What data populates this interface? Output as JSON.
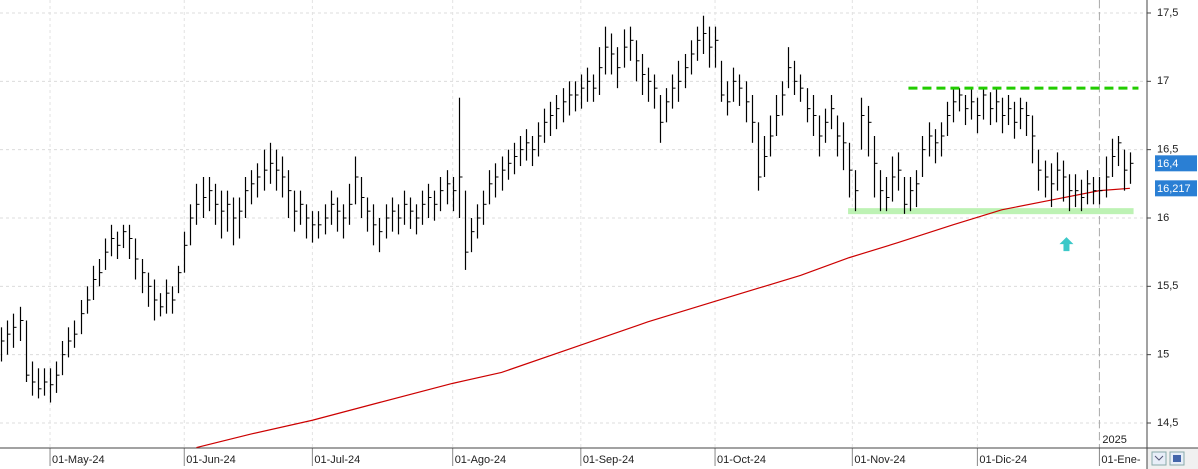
{
  "chart_data": {
    "type": "ohlc",
    "color": "#000000",
    "xlim": [
      -0.2,
      187.8
    ],
    "ylim": [
      14.317,
      17.595
    ],
    "grid": true,
    "yticks": [
      {
        "value": 17.5,
        "label": "17,5"
      },
      {
        "value": 17,
        "label": "17"
      },
      {
        "value": 16.5,
        "label": "16,5"
      },
      {
        "value": 16,
        "label": "16"
      },
      {
        "value": 15.5,
        "label": "15,5"
      },
      {
        "value": 15,
        "label": "15"
      },
      {
        "value": 14.5,
        "label": "14,5"
      }
    ],
    "xticks": [
      {
        "value": 8,
        "label": "01-May-24"
      },
      {
        "value": 30,
        "label": "01-Jun-24"
      },
      {
        "value": 51,
        "label": "01-Jul-24"
      },
      {
        "value": 74,
        "label": "01-Ago-24"
      },
      {
        "value": 95,
        "label": "01-Sep-24"
      },
      {
        "value": 117,
        "label": "01-Oct-24"
      },
      {
        "value": 139.5,
        "label": "01-Nov-24"
      },
      {
        "value": 160,
        "label": "01-Dic-24"
      },
      {
        "value": 180,
        "label": "01-Ene-"
      }
    ],
    "year_divider": {
      "value": 180,
      "label": "2025"
    },
    "high": [
      15.2,
      15.25,
      15.3,
      15.35,
      15.25,
      14.95,
      14.9,
      14.9,
      14.9,
      14.95,
      15.1,
      15.2,
      15.25,
      15.4,
      15.5,
      15.65,
      15.7,
      15.85,
      15.95,
      15.9,
      15.95,
      15.95,
      15.85,
      15.7,
      15.6,
      15.55,
      15.45,
      15.55,
      15.5,
      15.65,
      15.9,
      16.1,
      16.25,
      16.3,
      16.3,
      16.25,
      16.2,
      16.2,
      16.15,
      16.15,
      16.3,
      16.35,
      16.4,
      16.5,
      16.55,
      16.5,
      16.45,
      16.35,
      16.2,
      16.2,
      16.1,
      16.05,
      16.05,
      16.1,
      16.2,
      16.15,
      16.1,
      16.25,
      16.45,
      16.3,
      16.15,
      16.1,
      16.0,
      16.1,
      16.15,
      16.1,
      16.2,
      16.15,
      16.1,
      16.2,
      16.25,
      16.2,
      16.3,
      16.35,
      16.3,
      16.88,
      16.2,
      16.0,
      16.1,
      16.2,
      16.35,
      16.4,
      16.45,
      16.5,
      16.55,
      16.6,
      16.65,
      16.6,
      16.7,
      16.8,
      16.85,
      16.9,
      16.95,
      17.0,
      17.0,
      17.05,
      17.1,
      17.05,
      17.25,
      17.4,
      17.35,
      17.25,
      17.38,
      17.4,
      17.3,
      17.2,
      17.1,
      17.05,
      16.9,
      16.95,
      17.05,
      17.15,
      17.2,
      17.3,
      17.4,
      17.48,
      17.4,
      17.4,
      17.15,
      17.0,
      17.1,
      17.05,
      17.0,
      16.9,
      16.7,
      16.6,
      16.75,
      16.9,
      17.0,
      17.25,
      17.15,
      17.05,
      16.95,
      16.9,
      16.75,
      16.8,
      16.9,
      16.75,
      16.7,
      16.55,
      16.35,
      16.88,
      16.82,
      16.6,
      16.35,
      16.3,
      16.45,
      16.48,
      16.3,
      16.3,
      16.35,
      16.6,
      16.7,
      16.65,
      16.7,
      16.85,
      16.95,
      16.95,
      16.9,
      16.95,
      16.88,
      16.95,
      16.92,
      16.95,
      16.88,
      16.9,
      16.85,
      16.88,
      16.85,
      16.75,
      16.5,
      16.42,
      16.4,
      16.48,
      16.42,
      16.32,
      16.32,
      16.28,
      16.35,
      16.3,
      16.3,
      16.45,
      16.58,
      16.6,
      16.5,
      16.48
    ],
    "low": [
      14.95,
      15.0,
      15.05,
      15.1,
      14.8,
      14.7,
      14.68,
      14.7,
      14.65,
      14.72,
      14.85,
      14.98,
      15.05,
      15.15,
      15.3,
      15.4,
      15.5,
      15.62,
      15.72,
      15.7,
      15.78,
      15.7,
      15.55,
      15.45,
      15.35,
      15.25,
      15.28,
      15.3,
      15.3,
      15.45,
      15.6,
      15.8,
      15.95,
      16.0,
      16.05,
      15.95,
      15.85,
      15.9,
      15.8,
      15.85,
      16.0,
      16.1,
      16.15,
      16.2,
      16.25,
      16.2,
      16.15,
      16.0,
      15.9,
      15.95,
      15.85,
      15.82,
      15.85,
      15.88,
      15.95,
      15.9,
      15.85,
      15.95,
      16.1,
      16.0,
      15.9,
      15.8,
      15.75,
      15.85,
      15.9,
      15.88,
      15.95,
      15.92,
      15.88,
      15.95,
      16.0,
      15.98,
      16.05,
      16.1,
      16.05,
      16.0,
      15.62,
      15.75,
      15.85,
      15.95,
      16.1,
      16.15,
      16.2,
      16.28,
      16.32,
      16.38,
      16.42,
      16.38,
      16.45,
      16.55,
      16.6,
      16.65,
      16.7,
      16.75,
      16.78,
      16.8,
      16.85,
      16.85,
      16.9,
      17.05,
      17.05,
      16.95,
      17.1,
      17.15,
      17.0,
      16.9,
      16.85,
      16.8,
      16.55,
      16.7,
      16.8,
      16.85,
      16.95,
      17.05,
      17.15,
      17.2,
      17.1,
      17.1,
      16.85,
      16.75,
      16.85,
      16.82,
      16.7,
      16.55,
      16.2,
      16.3,
      16.45,
      16.6,
      16.75,
      16.95,
      16.9,
      16.85,
      16.7,
      16.6,
      16.45,
      16.55,
      16.65,
      16.45,
      16.35,
      16.15,
      16.05,
      16.5,
      16.45,
      16.15,
      16.05,
      16.05,
      16.12,
      16.2,
      16.03,
      16.05,
      16.08,
      16.3,
      16.45,
      16.4,
      16.45,
      16.6,
      16.7,
      16.78,
      16.68,
      16.72,
      16.62,
      16.72,
      16.68,
      16.7,
      16.62,
      16.68,
      16.58,
      16.65,
      16.6,
      16.4,
      16.2,
      16.15,
      16.08,
      16.2,
      16.12,
      16.05,
      16.08,
      16.05,
      16.1,
      16.1,
      16.1,
      16.15,
      16.3,
      16.38,
      16.2,
      16.25
    ],
    "close": [
      15.1,
      15.15,
      15.2,
      15.25,
      14.85,
      14.8,
      14.75,
      14.8,
      14.78,
      14.85,
      15.0,
      15.1,
      15.15,
      15.3,
      15.4,
      15.55,
      15.6,
      15.75,
      15.85,
      15.8,
      15.9,
      15.85,
      15.7,
      15.6,
      15.5,
      15.4,
      15.35,
      15.45,
      15.4,
      15.6,
      15.8,
      16.0,
      16.1,
      16.15,
      16.2,
      16.1,
      16.05,
      16.1,
      16.0,
      16.05,
      16.2,
      16.25,
      16.3,
      16.35,
      16.4,
      16.35,
      16.3,
      16.2,
      16.05,
      16.1,
      16.0,
      15.95,
      15.95,
      16.0,
      16.1,
      16.05,
      16.0,
      16.1,
      16.3,
      16.15,
      16.05,
      15.95,
      15.9,
      16.0,
      16.05,
      16.0,
      16.1,
      16.05,
      16.0,
      16.1,
      16.15,
      16.1,
      16.2,
      16.25,
      16.2,
      16.3,
      15.75,
      15.9,
      16.0,
      16.1,
      16.25,
      16.3,
      16.35,
      16.4,
      16.45,
      16.5,
      16.55,
      16.5,
      16.6,
      16.7,
      16.75,
      16.8,
      16.85,
      16.9,
      16.9,
      16.95,
      17.0,
      16.95,
      17.1,
      17.25,
      17.2,
      17.1,
      17.25,
      17.3,
      17.15,
      17.05,
      17.0,
      16.95,
      16.7,
      16.85,
      16.95,
      17.0,
      17.1,
      17.2,
      17.3,
      17.35,
      17.25,
      17.3,
      16.9,
      16.85,
      17.0,
      16.95,
      16.85,
      16.7,
      16.3,
      16.45,
      16.6,
      16.75,
      16.9,
      17.1,
      17.0,
      16.95,
      16.8,
      16.75,
      16.6,
      16.7,
      16.8,
      16.6,
      16.55,
      16.35,
      16.2,
      16.75,
      16.7,
      16.4,
      16.2,
      16.15,
      16.3,
      16.35,
      16.1,
      16.2,
      16.25,
      16.5,
      16.6,
      16.55,
      16.6,
      16.75,
      16.85,
      16.9,
      16.8,
      16.85,
      16.75,
      16.9,
      16.8,
      16.85,
      16.75,
      16.8,
      16.7,
      16.8,
      16.75,
      16.6,
      16.35,
      16.3,
      16.25,
      16.35,
      16.3,
      16.2,
      16.2,
      16.15,
      16.25,
      16.2,
      16.2,
      16.3,
      16.45,
      16.55,
      16.35,
      16.4
    ],
    "moving_average": {
      "color": "#cc0000",
      "x": [
        32,
        41,
        51,
        62,
        74,
        82,
        95,
        106,
        117,
        131,
        139,
        147,
        156,
        164,
        172,
        180,
        185
      ],
      "values": [
        14.32,
        14.42,
        14.52,
        14.65,
        14.79,
        14.87,
        15.07,
        15.24,
        15.39,
        15.58,
        15.71,
        15.82,
        15.95,
        16.06,
        16.13,
        16.2,
        16.217
      ]
    },
    "resistance": {
      "value": 16.95,
      "from": 148.7,
      "to": 186.4,
      "color": "#22cc00"
    },
    "support": {
      "value": 16.05,
      "from": 138.8,
      "to": 185.6,
      "color": "#bdf2b4"
    },
    "arrow": {
      "x": 174.6,
      "value": 15.86,
      "color": "#3cc8c8"
    },
    "price_tags": [
      {
        "value": 16.4,
        "label": "16,4",
        "color": "#2a7fd4"
      },
      {
        "value": 16.217,
        "label": "16,217",
        "color": "#2a7fd4"
      }
    ]
  }
}
